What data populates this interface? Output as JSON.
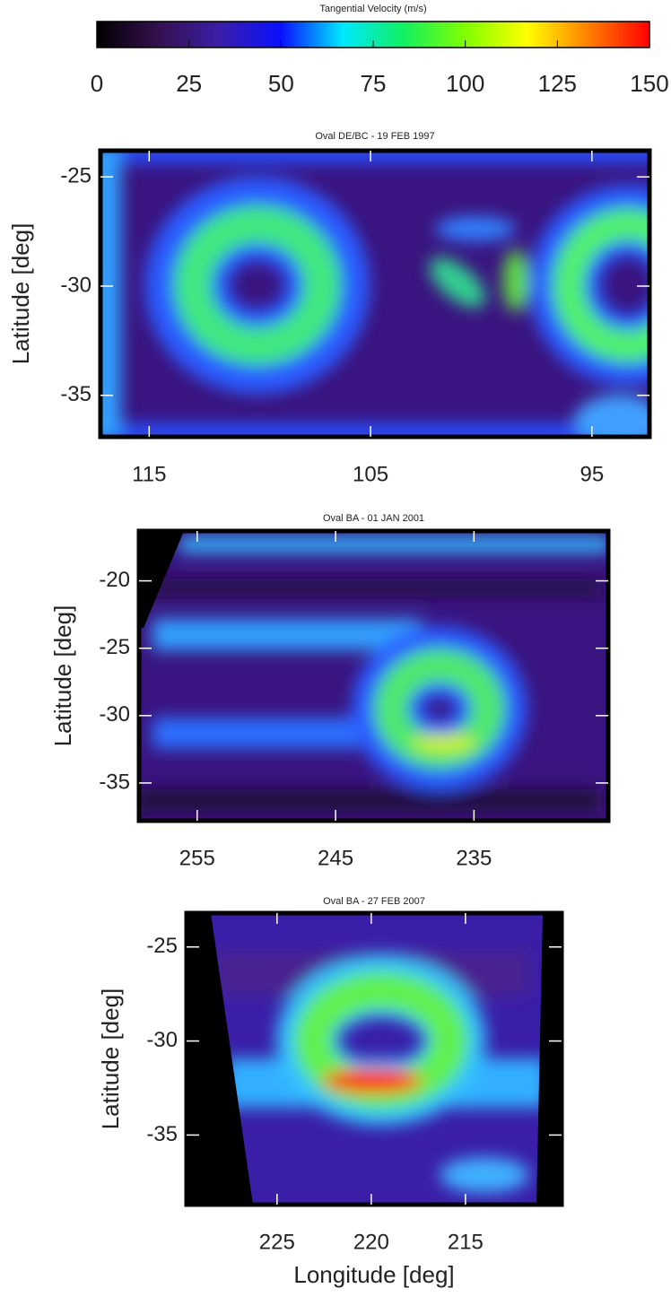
{
  "chart_data": [
    {
      "type": "colorbar",
      "title": "Tangential Velocity (m/s)",
      "xlim": [
        0,
        150
      ],
      "xticks": [
        0,
        25,
        50,
        75,
        100,
        125,
        150
      ],
      "colormap": [
        "#000000",
        "#35104f",
        "#3a1ea8",
        "#0a10ff",
        "#00e8ff",
        "#10f060",
        "#80ff00",
        "#ffff00",
        "#ff8000",
        "#ff0000"
      ]
    },
    {
      "type": "heatmap",
      "title": "Oval DE/BC - 19 FEB 1997",
      "ylabel": "Latitude [deg]",
      "xlim": [
        117.2,
        92.4
      ],
      "xticks": [
        115,
        105,
        95
      ],
      "ylim": [
        -36.9,
        -23.8
      ],
      "yticks": [
        -25,
        -30,
        -35
      ]
    },
    {
      "type": "heatmap",
      "title": "Oval BA - 01 JAN 2001",
      "ylabel": "Latitude [deg]",
      "xlim": [
        259.2,
        225.3
      ],
      "xticks": [
        255,
        245,
        235
      ],
      "ylim": [
        -37.8,
        -16.3
      ],
      "yticks": [
        -20,
        -25,
        -30,
        -35
      ]
    },
    {
      "type": "heatmap",
      "title": "Oval BA - 27 FEB 2007",
      "ylabel": "Latitude [deg]",
      "xlabel": "Longitude [deg]",
      "xlim": [
        229.8,
        209.9
      ],
      "xticks": [
        225,
        220,
        215
      ],
      "ylim": [
        -38.7,
        -23.2
      ],
      "yticks": [
        -25,
        -30,
        -35
      ]
    }
  ]
}
